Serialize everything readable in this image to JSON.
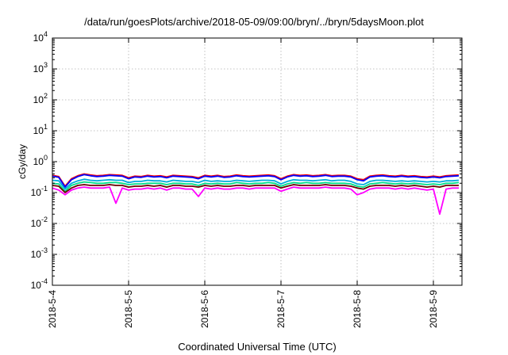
{
  "chart_data": {
    "type": "line",
    "title": "/data/run/goesPlots/archive/2018-05-09/09:00/bryn/../bryn/5daysMoon.plot",
    "xlabel": "Coordinated Universal Time (UTC)",
    "ylabel": "cGy/day",
    "yscale": "log",
    "ylim": [
      0.0001,
      10000
    ],
    "xlim": [
      "2018-05-04 00:00",
      "2018-05-09 09:00"
    ],
    "x_tick_labels": [
      "2018-5-4",
      "2018-5-5",
      "2018-5-6",
      "2018-5-7",
      "2018-5-8",
      "2018-5-9"
    ],
    "y_ticks": [
      {
        "value": 0.0001,
        "base": "10",
        "exp": "-4"
      },
      {
        "value": 0.001,
        "base": "10",
        "exp": "-3"
      },
      {
        "value": 0.01,
        "base": "10",
        "exp": "-2"
      },
      {
        "value": 0.1,
        "base": "10",
        "exp": "-1"
      },
      {
        "value": 1,
        "base": "10",
        "exp": "0"
      },
      {
        "value": 10,
        "base": "10",
        "exp": "1"
      },
      {
        "value": 100,
        "base": "10",
        "exp": "2"
      },
      {
        "value": 1000,
        "base": "10",
        "exp": "3"
      },
      {
        "value": 10000,
        "base": "10",
        "exp": "4"
      }
    ],
    "grid": true,
    "legend": "none",
    "x_hours": [
      0,
      2,
      4,
      6,
      8,
      10,
      12,
      14,
      16,
      18,
      20,
      22,
      24,
      26,
      28,
      30,
      32,
      34,
      36,
      38,
      40,
      42,
      44,
      46,
      48,
      50,
      52,
      54,
      56,
      58,
      60,
      62,
      64,
      66,
      68,
      70,
      72,
      74,
      76,
      78,
      80,
      82,
      84,
      86,
      88,
      90,
      92,
      94,
      96,
      98,
      100,
      102,
      104,
      106,
      108,
      110,
      112,
      114,
      116,
      118,
      120,
      122,
      124,
      126,
      128
    ],
    "series": [
      {
        "color": "#ff0000",
        "values": [
          0.36,
          0.33,
          0.16,
          0.28,
          0.35,
          0.4,
          0.37,
          0.35,
          0.36,
          0.38,
          0.37,
          0.36,
          0.3,
          0.34,
          0.33,
          0.36,
          0.34,
          0.35,
          0.32,
          0.36,
          0.35,
          0.34,
          0.33,
          0.3,
          0.36,
          0.34,
          0.36,
          0.33,
          0.34,
          0.37,
          0.35,
          0.34,
          0.35,
          0.36,
          0.37,
          0.35,
          0.28,
          0.34,
          0.38,
          0.36,
          0.37,
          0.35,
          0.36,
          0.38,
          0.35,
          0.36,
          0.36,
          0.34,
          0.28,
          0.26,
          0.34,
          0.36,
          0.37,
          0.35,
          0.34,
          0.36,
          0.34,
          0.35,
          0.33,
          0.32,
          0.34,
          0.32,
          0.35,
          0.36,
          0.37
        ]
      },
      {
        "color": "#0000ff",
        "values": [
          0.34,
          0.31,
          0.15,
          0.26,
          0.33,
          0.38,
          0.35,
          0.33,
          0.34,
          0.36,
          0.35,
          0.34,
          0.28,
          0.32,
          0.31,
          0.34,
          0.32,
          0.33,
          0.3,
          0.34,
          0.33,
          0.32,
          0.31,
          0.28,
          0.34,
          0.32,
          0.34,
          0.31,
          0.32,
          0.35,
          0.33,
          0.32,
          0.33,
          0.34,
          0.35,
          0.33,
          0.26,
          0.32,
          0.36,
          0.34,
          0.35,
          0.33,
          0.34,
          0.36,
          0.33,
          0.34,
          0.34,
          0.32,
          0.26,
          0.24,
          0.32,
          0.34,
          0.35,
          0.33,
          0.32,
          0.34,
          0.32,
          0.33,
          0.31,
          0.3,
          0.32,
          0.3,
          0.33,
          0.34,
          0.35
        ]
      },
      {
        "color": "#00aadd",
        "values": [
          0.25,
          0.24,
          0.13,
          0.2,
          0.24,
          0.27,
          0.25,
          0.24,
          0.25,
          0.26,
          0.25,
          0.25,
          0.21,
          0.23,
          0.23,
          0.25,
          0.24,
          0.24,
          0.22,
          0.25,
          0.24,
          0.23,
          0.23,
          0.21,
          0.25,
          0.23,
          0.24,
          0.23,
          0.23,
          0.25,
          0.24,
          0.23,
          0.24,
          0.25,
          0.25,
          0.24,
          0.19,
          0.23,
          0.26,
          0.25,
          0.25,
          0.24,
          0.25,
          0.26,
          0.24,
          0.25,
          0.25,
          0.23,
          0.19,
          0.18,
          0.23,
          0.25,
          0.25,
          0.24,
          0.23,
          0.24,
          0.23,
          0.24,
          0.23,
          0.22,
          0.23,
          0.22,
          0.24,
          0.24,
          0.25
        ]
      },
      {
        "color": "#00dd88",
        "values": [
          0.2,
          0.19,
          0.11,
          0.17,
          0.2,
          0.22,
          0.21,
          0.2,
          0.2,
          0.21,
          0.21,
          0.2,
          0.18,
          0.19,
          0.19,
          0.2,
          0.2,
          0.2,
          0.18,
          0.2,
          0.2,
          0.19,
          0.19,
          0.17,
          0.2,
          0.19,
          0.2,
          0.19,
          0.19,
          0.21,
          0.2,
          0.19,
          0.2,
          0.2,
          0.21,
          0.2,
          0.16,
          0.19,
          0.21,
          0.2,
          0.21,
          0.2,
          0.2,
          0.21,
          0.2,
          0.2,
          0.2,
          0.19,
          0.16,
          0.15,
          0.19,
          0.2,
          0.21,
          0.2,
          0.19,
          0.2,
          0.19,
          0.2,
          0.19,
          0.18,
          0.19,
          0.18,
          0.2,
          0.2,
          0.21
        ]
      },
      {
        "color": "#6b0000",
        "values": [
          0.17,
          0.16,
          0.1,
          0.14,
          0.17,
          0.18,
          0.17,
          0.17,
          0.17,
          0.18,
          0.17,
          0.17,
          0.15,
          0.16,
          0.16,
          0.17,
          0.16,
          0.17,
          0.15,
          0.17,
          0.17,
          0.16,
          0.16,
          0.15,
          0.17,
          0.16,
          0.17,
          0.16,
          0.16,
          0.17,
          0.17,
          0.16,
          0.17,
          0.17,
          0.17,
          0.17,
          0.14,
          0.16,
          0.18,
          0.17,
          0.17,
          0.17,
          0.17,
          0.18,
          0.17,
          0.17,
          0.17,
          0.16,
          0.14,
          0.13,
          0.16,
          0.17,
          0.17,
          0.17,
          0.16,
          0.17,
          0.16,
          0.17,
          0.16,
          0.15,
          0.16,
          0.15,
          0.17,
          0.17,
          0.17
        ]
      },
      {
        "color": "#ff00ff",
        "values": [
          0.14,
          0.12,
          0.085,
          0.12,
          0.14,
          0.15,
          0.14,
          0.14,
          0.14,
          0.15,
          0.045,
          0.14,
          0.12,
          0.13,
          0.13,
          0.14,
          0.13,
          0.14,
          0.12,
          0.14,
          0.14,
          0.13,
          0.13,
          0.075,
          0.14,
          0.13,
          0.14,
          0.13,
          0.13,
          0.14,
          0.14,
          0.13,
          0.14,
          0.14,
          0.14,
          0.14,
          0.11,
          0.13,
          0.15,
          0.14,
          0.14,
          0.14,
          0.14,
          0.15,
          0.14,
          0.14,
          0.14,
          0.13,
          0.085,
          0.1,
          0.13,
          0.14,
          0.14,
          0.14,
          0.13,
          0.14,
          0.13,
          0.14,
          0.13,
          0.12,
          0.13,
          0.02,
          0.13,
          0.14,
          0.14
        ]
      }
    ]
  }
}
